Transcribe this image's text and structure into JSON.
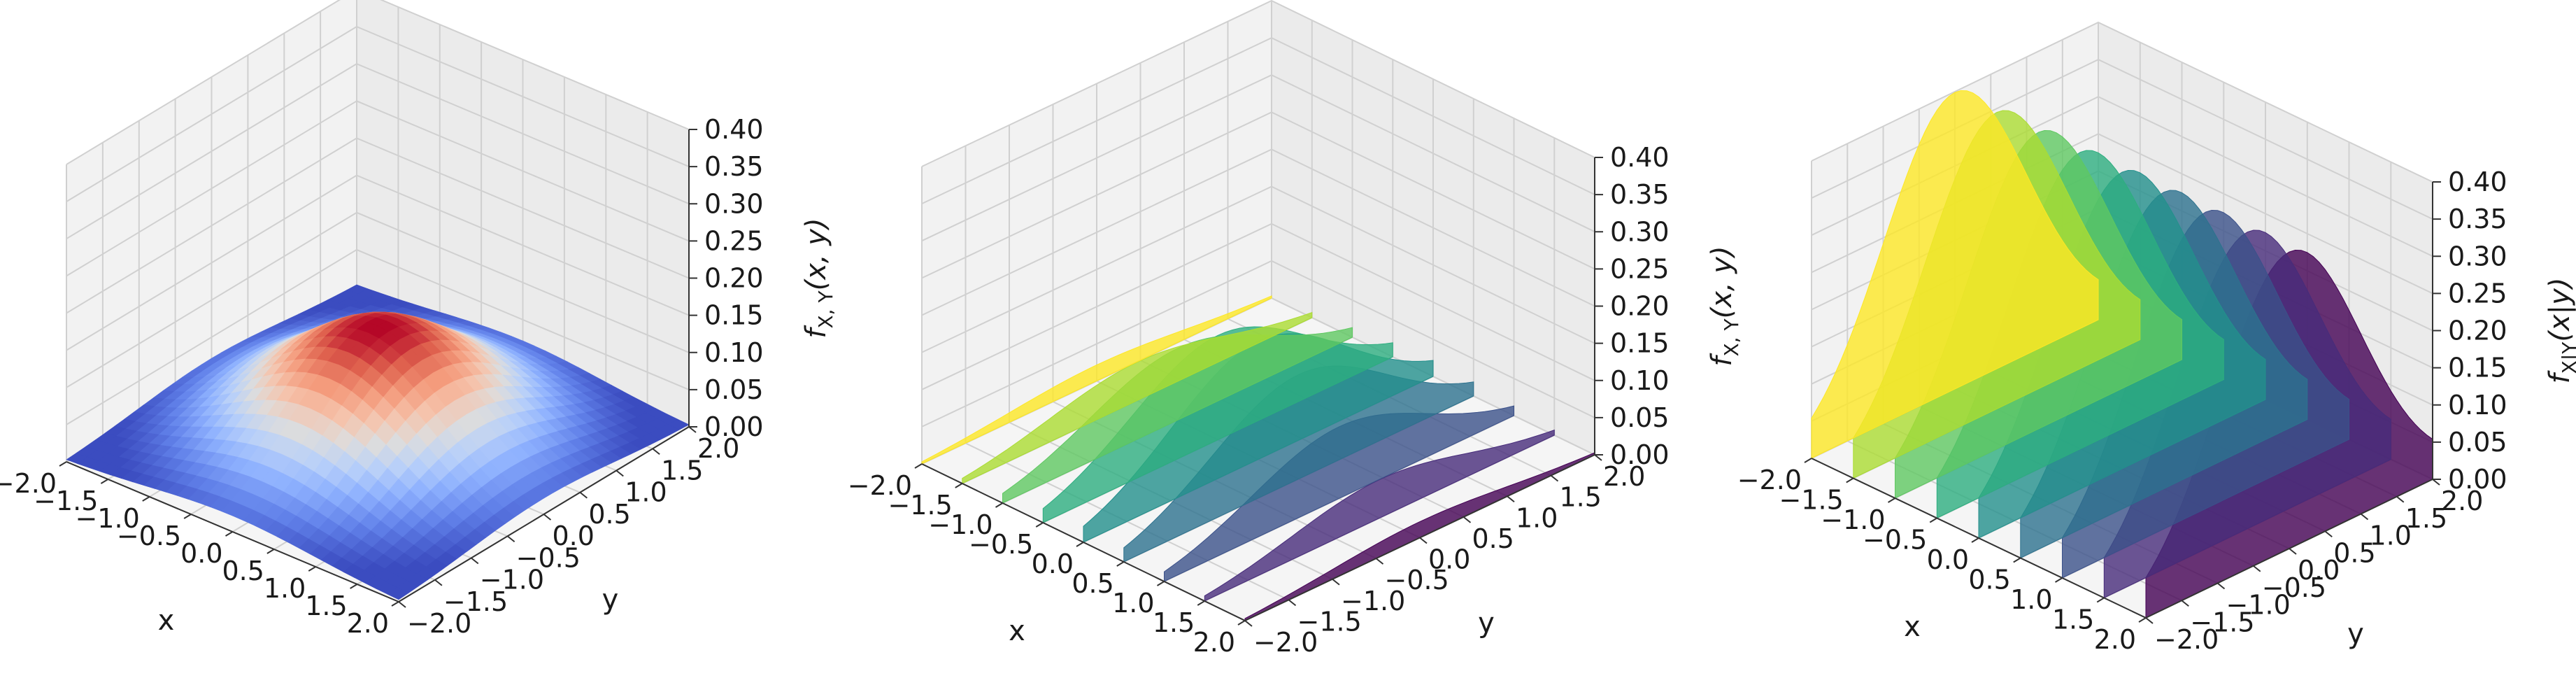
{
  "chart_data": [
    {
      "type": "surface3d",
      "title": "",
      "colormap": "coolwarm",
      "surface": "f(x,y) = exp(-(x^2+y^2)/2) / (2*pi)",
      "xlabel": "x",
      "ylabel": "y",
      "zlabel": "f_X, Y(x, y)",
      "zlabel_parts": {
        "f": "f",
        "sub": "X, Y",
        "args": "(x, y)"
      },
      "xlim": [
        -2.0,
        2.0
      ],
      "ylim": [
        -2.0,
        2.0
      ],
      "zlim": [
        0.0,
        0.4
      ],
      "xticks": [
        "−2.0",
        "−1.5",
        "−1.0",
        "−0.5",
        "0.0",
        "0.5",
        "1.0",
        "1.5",
        "2.0"
      ],
      "yticks": [
        "−2.0",
        "−1.5",
        "−1.0",
        "−0.5",
        "0.0",
        "0.5",
        "1.0",
        "1.5",
        "2.0"
      ],
      "zticks": [
        "0.00",
        "0.05",
        "0.10",
        "0.15",
        "0.20",
        "0.25",
        "0.30",
        "0.35",
        "0.40"
      ],
      "peak_value": 0.159,
      "grid": true
    },
    {
      "type": "slices3d",
      "title": "",
      "colormap": "viridis",
      "surface": "f(x,y) = exp(-(x^2+y^2)/2) / (2*pi)",
      "slice_x_values": [
        -2.0,
        -1.5,
        -1.0,
        -0.5,
        0.0,
        0.5,
        1.0,
        1.5,
        2.0
      ],
      "slice_peaks": [
        0.022,
        0.052,
        0.097,
        0.14,
        0.159,
        0.14,
        0.097,
        0.052,
        0.022
      ],
      "xlabel": "x",
      "ylabel": "y",
      "zlabel": "f_X, Y(x, y)",
      "zlabel_parts": {
        "f": "f",
        "sub": "X, Y",
        "args": "(x, y)"
      },
      "xlim": [
        -2.0,
        2.0
      ],
      "ylim": [
        -2.0,
        2.0
      ],
      "zlim": [
        0.0,
        0.4
      ],
      "xticks": [
        "−2.0",
        "−1.5",
        "−1.0",
        "−0.5",
        "0.0",
        "0.5",
        "1.0",
        "1.5",
        "2.0"
      ],
      "yticks": [
        "−2.0",
        "−1.5",
        "−1.0",
        "−0.5",
        "0.0",
        "0.5",
        "1.0",
        "1.5",
        "2.0"
      ],
      "zticks": [
        "0.00",
        "0.05",
        "0.10",
        "0.15",
        "0.20",
        "0.25",
        "0.30",
        "0.35",
        "0.40"
      ],
      "grid": true
    },
    {
      "type": "slices3d",
      "title": "",
      "colormap": "viridis",
      "surface": "f(x|y) = exp(-x^2/2) / sqrt(2*pi)",
      "slice_x_values": [
        -2.0,
        -1.5,
        -1.0,
        -0.5,
        0.0,
        0.5,
        1.0,
        1.5,
        2.0
      ],
      "slice_peaks": [
        0.399,
        0.399,
        0.399,
        0.399,
        0.399,
        0.399,
        0.399,
        0.399,
        0.399
      ],
      "xlabel": "x",
      "ylabel": "y",
      "zlabel": "f_X|Y(x|y)",
      "zlabel_parts": {
        "f": "f",
        "sub": "X|Y",
        "args": "(x|y)"
      },
      "xlim": [
        -2.0,
        2.0
      ],
      "ylim": [
        -2.0,
        2.0
      ],
      "zlim": [
        0.0,
        0.4
      ],
      "xticks": [
        "−2.0",
        "−1.5",
        "−1.0",
        "−0.5",
        "0.0",
        "0.5",
        "1.0",
        "1.5",
        "2.0"
      ],
      "yticks": [
        "−2.0",
        "−1.5",
        "−1.0",
        "−0.5",
        "0.0",
        "0.5",
        "1.0",
        "1.5",
        "2.0"
      ],
      "zticks": [
        "0.00",
        "0.05",
        "0.10",
        "0.15",
        "0.20",
        "0.25",
        "0.30",
        "0.35",
        "0.40"
      ],
      "grid": true
    }
  ]
}
